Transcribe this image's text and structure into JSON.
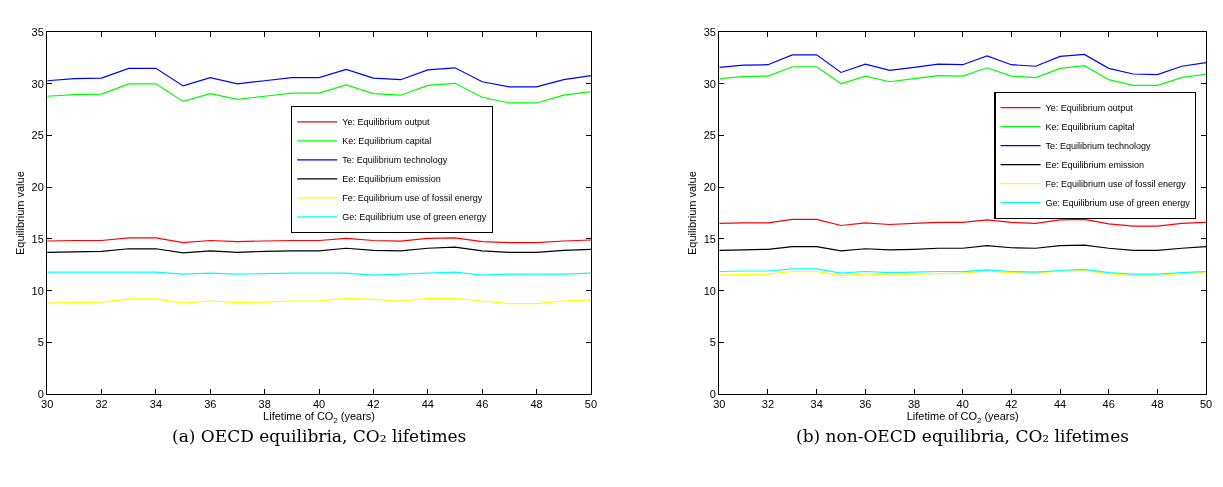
{
  "chart_data": [
    {
      "type": "line",
      "title": "(a) OECD equilibria, CO₂ lifetimes",
      "xlabel": "Lifetime of CO$_{2}$ (years)",
      "ylabel": "Equilibrium value",
      "x": [
        30,
        31,
        32,
        33,
        34,
        35,
        36,
        37,
        38,
        39,
        40,
        41,
        42,
        43,
        44,
        45,
        46,
        47,
        48,
        49,
        50
      ],
      "xlim": [
        30,
        50
      ],
      "xticks": [
        30,
        32,
        34,
        36,
        38,
        40,
        42,
        44,
        46,
        48,
        50
      ],
      "ylim": [
        0,
        35
      ],
      "yticks": [
        0,
        5,
        10,
        15,
        20,
        25,
        30,
        35
      ],
      "legend": "right",
      "marker": "none",
      "line_style": "solid",
      "series": [
        {
          "name": "Ye: Equilibrium output",
          "color": "#ff0000",
          "values": [
            14.8,
            14.85,
            14.85,
            15.1,
            15.1,
            14.65,
            14.85,
            14.75,
            14.8,
            14.85,
            14.85,
            15.05,
            14.85,
            14.8,
            15.05,
            15.1,
            14.75,
            14.65,
            14.65,
            14.8,
            14.9
          ]
        },
        {
          "name": "Ke: Equilibrium capital",
          "color": "#00ff00",
          "values": [
            28.8,
            28.95,
            29.0,
            30.0,
            30.0,
            28.3,
            29.05,
            28.5,
            28.8,
            29.1,
            29.1,
            29.9,
            29.05,
            28.9,
            29.85,
            30.05,
            28.7,
            28.15,
            28.15,
            28.9,
            29.25
          ]
        },
        {
          "name": "Te: Equilibrium technology",
          "color": "#0000ff",
          "values": [
            30.3,
            30.5,
            30.55,
            31.5,
            31.5,
            29.8,
            30.6,
            30.0,
            30.3,
            30.6,
            30.6,
            31.4,
            30.55,
            30.4,
            31.35,
            31.55,
            30.2,
            29.7,
            29.7,
            30.4,
            30.8
          ]
        },
        {
          "name": "Ee: Equilibrium emission",
          "color": "#000000",
          "values": [
            13.7,
            13.75,
            13.8,
            14.05,
            14.05,
            13.65,
            13.85,
            13.7,
            13.8,
            13.85,
            13.85,
            14.1,
            13.9,
            13.85,
            14.1,
            14.2,
            13.85,
            13.7,
            13.7,
            13.9,
            14.0
          ]
        },
        {
          "name": "Fe: Equilibrium use of fossil energy",
          "color": "#ffff00",
          "values": [
            8.8,
            8.85,
            8.9,
            9.2,
            9.2,
            8.8,
            9.0,
            8.85,
            8.9,
            9.0,
            9.0,
            9.25,
            9.15,
            9.0,
            9.25,
            9.25,
            9.0,
            8.75,
            8.75,
            9.0,
            9.1
          ]
        },
        {
          "name": "Ge: Equilibrium use of green energy",
          "color": "#00ffff",
          "values": [
            11.8,
            11.8,
            11.8,
            11.8,
            11.8,
            11.6,
            11.7,
            11.6,
            11.65,
            11.7,
            11.7,
            11.7,
            11.5,
            11.6,
            11.7,
            11.8,
            11.5,
            11.6,
            11.6,
            11.6,
            11.7
          ]
        }
      ]
    },
    {
      "type": "line",
      "title": "(b) non-OECD equilibria, CO₂ lifetimes",
      "xlabel": "Lifetime of CO$_{2}$ (years)",
      "ylabel": "Equilibrium value",
      "x": [
        30,
        31,
        32,
        33,
        34,
        35,
        36,
        37,
        38,
        39,
        40,
        41,
        42,
        43,
        44,
        45,
        46,
        47,
        48,
        49,
        50
      ],
      "xlim": [
        30,
        50
      ],
      "xticks": [
        30,
        32,
        34,
        36,
        38,
        40,
        42,
        44,
        46,
        48,
        50
      ],
      "ylim": [
        0,
        35
      ],
      "yticks": [
        0,
        5,
        10,
        15,
        20,
        25,
        30,
        35
      ],
      "legend": "top right",
      "marker": "none",
      "line_style": "solid",
      "series": [
        {
          "name": "Ye: Equilibrium output",
          "color": "#ff0000",
          "values": [
            16.5,
            16.55,
            16.55,
            16.9,
            16.9,
            16.3,
            16.55,
            16.4,
            16.5,
            16.6,
            16.6,
            16.85,
            16.6,
            16.5,
            16.85,
            16.9,
            16.45,
            16.25,
            16.25,
            16.5,
            16.6
          ]
        },
        {
          "name": "Ke: Equilibrium capital",
          "color": "#00ff00",
          "values": [
            30.5,
            30.7,
            30.75,
            31.65,
            31.65,
            30.0,
            30.75,
            30.2,
            30.5,
            30.8,
            30.75,
            31.55,
            30.75,
            30.6,
            31.5,
            31.75,
            30.4,
            29.85,
            29.85,
            30.6,
            30.95
          ]
        },
        {
          "name": "Te: Equilibrium technology",
          "color": "#0000ff",
          "values": [
            31.6,
            31.8,
            31.85,
            32.8,
            32.8,
            31.1,
            31.9,
            31.3,
            31.6,
            31.9,
            31.85,
            32.7,
            31.85,
            31.7,
            32.65,
            32.85,
            31.5,
            30.95,
            30.9,
            31.7,
            32.05
          ]
        },
        {
          "name": "Ee: Equilibrium emission",
          "color": "#000000",
          "values": [
            13.9,
            13.95,
            14.0,
            14.25,
            14.25,
            13.85,
            14.05,
            13.95,
            14.0,
            14.1,
            14.1,
            14.35,
            14.15,
            14.1,
            14.35,
            14.4,
            14.1,
            13.9,
            13.9,
            14.1,
            14.25
          ]
        },
        {
          "name": "Fe: Equilibrium use of fossil energy",
          "color": "#ffff00",
          "values": [
            11.5,
            11.55,
            11.6,
            11.85,
            11.85,
            11.45,
            11.65,
            11.5,
            11.6,
            11.65,
            11.7,
            11.9,
            11.75,
            11.7,
            11.9,
            11.95,
            11.65,
            11.45,
            11.45,
            11.7,
            11.8
          ]
        },
        {
          "name": "Ge: Equilibrium use of green energy",
          "color": "#00ffff",
          "values": [
            11.85,
            11.9,
            11.9,
            12.1,
            12.1,
            11.7,
            11.85,
            11.75,
            11.8,
            11.85,
            11.85,
            12.0,
            11.85,
            11.8,
            11.95,
            12.05,
            11.75,
            11.6,
            11.6,
            11.75,
            11.85
          ]
        }
      ]
    }
  ]
}
